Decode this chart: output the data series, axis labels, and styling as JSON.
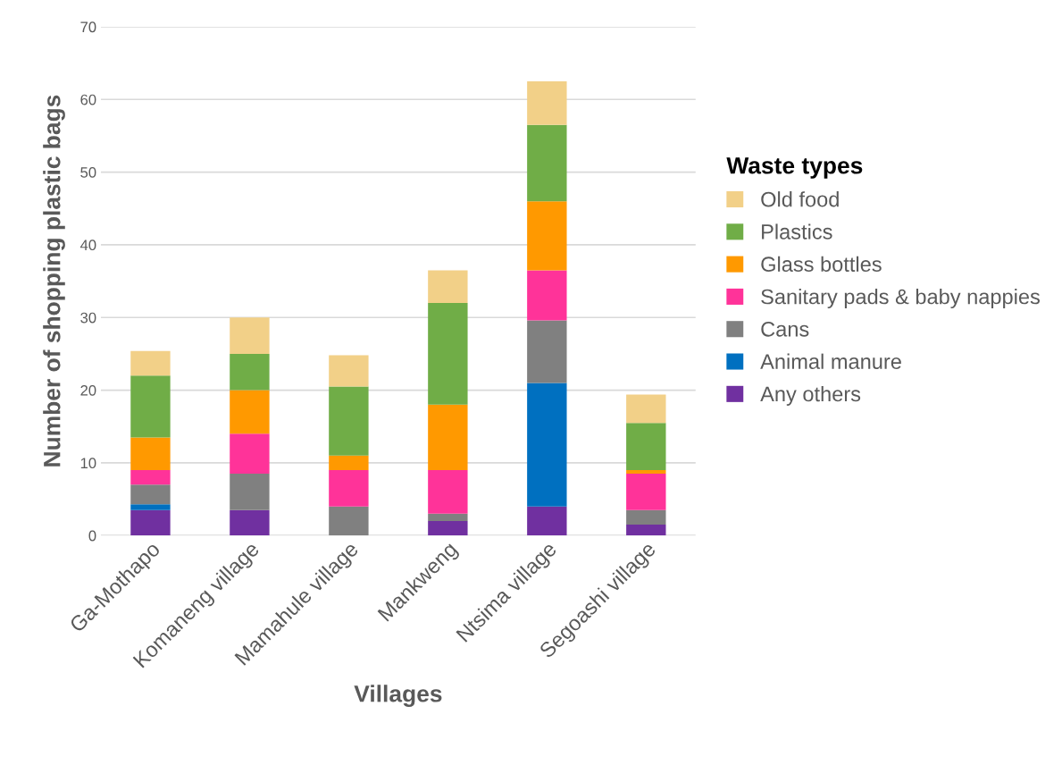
{
  "chart_data": {
    "type": "bar",
    "stacked": true,
    "xlabel": "Villages",
    "ylabel": "Number of shopping plastic bags",
    "legend_title": "Waste types",
    "legend": "right",
    "grid": "y",
    "categories": [
      "Ga-Mothapo",
      "Komaneng village",
      "Mamahule village",
      "Mankweng",
      "Ntsima village",
      "Segoashi village"
    ],
    "ylim": [
      0,
      70
    ],
    "yticks": [
      0,
      10,
      20,
      30,
      40,
      50,
      60,
      70
    ],
    "series": [
      {
        "name": "Any others",
        "color": "#7030a0",
        "values": [
          3.5,
          3.5,
          0,
          2,
          4,
          1.5
        ]
      },
      {
        "name": "Animal manure",
        "color": "#0070c0",
        "values": [
          0.8,
          0,
          0,
          0,
          17,
          0
        ]
      },
      {
        "name": "Cans",
        "color": "#808080",
        "values": [
          2.7,
          5,
          4,
          1,
          8.6,
          2
        ]
      },
      {
        "name": "Sanitary pads & baby nappies",
        "color": "#ff3399",
        "values": [
          2,
          5.5,
          5,
          6,
          6.9,
          5
        ]
      },
      {
        "name": "Glass bottles",
        "color": "#ff9900",
        "values": [
          4.5,
          6,
          2,
          9,
          9.5,
          0.5
        ]
      },
      {
        "name": "Plastics",
        "color": "#70ad47",
        "values": [
          8.5,
          5,
          9.5,
          14,
          10.5,
          6.5
        ]
      },
      {
        "name": "Old food",
        "color": "#f2d088",
        "values": [
          3.4,
          5,
          4.3,
          4.5,
          6,
          3.9
        ]
      }
    ]
  }
}
